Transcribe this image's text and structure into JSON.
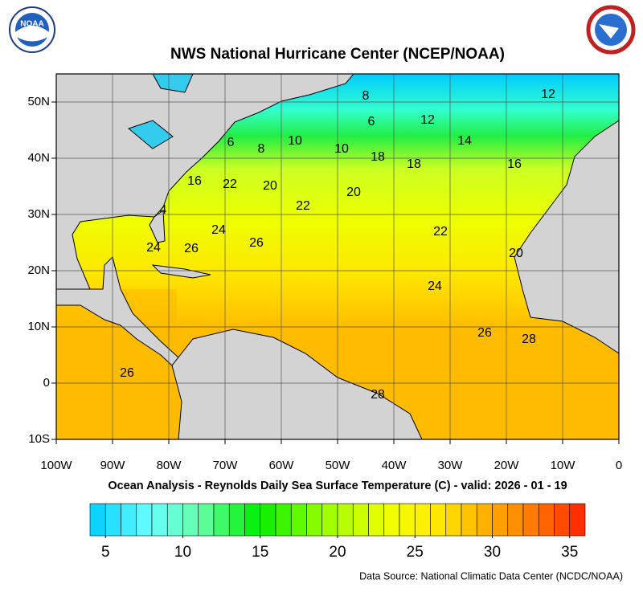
{
  "header": {
    "title": "NWS National Hurricane Center (NCEP/NOAA)",
    "logo_text": "NOAA"
  },
  "map": {
    "lon_ticks": [
      {
        "value": -100,
        "label": "100W"
      },
      {
        "value": -90,
        "label": "90W"
      },
      {
        "value": -80,
        "label": "80W"
      },
      {
        "value": -70,
        "label": "70W"
      },
      {
        "value": -60,
        "label": "60W"
      },
      {
        "value": -50,
        "label": "50W"
      },
      {
        "value": -40,
        "label": "40W"
      },
      {
        "value": -30,
        "label": "30W"
      },
      {
        "value": -20,
        "label": "20W"
      },
      {
        "value": -10,
        "label": "10W"
      },
      0
    ],
    "lat_ticks": [
      {
        "value": 50,
        "label": "50N"
      },
      {
        "value": 40,
        "label": "40N"
      },
      {
        "value": 30,
        "label": "30N"
      },
      {
        "value": 20,
        "label": "20N"
      },
      {
        "value": 10,
        "label": "10N"
      },
      0,
      {
        "value": -10,
        "label": "10S"
      }
    ],
    "lon_range": [
      -100,
      0
    ],
    "lat_range": [
      -10,
      55
    ],
    "contour_labels": [
      "8",
      "6",
      "12",
      "12",
      "14",
      "16",
      "18",
      "18",
      "10",
      "10",
      "8",
      "6",
      "16",
      "22",
      "20",
      "20",
      "22",
      "24",
      "26",
      "26",
      "24",
      "22",
      "20",
      "24",
      "26",
      "28",
      "26",
      "28",
      "4"
    ],
    "caption": "Ocean Analysis - Reynolds Daily Sea Surface Temperature (C) - valid: 2026 - 01 - 19"
  },
  "colorbar": {
    "range": [
      4,
      36
    ],
    "ticks": [
      5,
      10,
      15,
      20,
      25,
      30,
      35
    ]
  },
  "footer": {
    "source": "Data Source: National Climatic Data Center (NCDC/NOAA)"
  }
}
